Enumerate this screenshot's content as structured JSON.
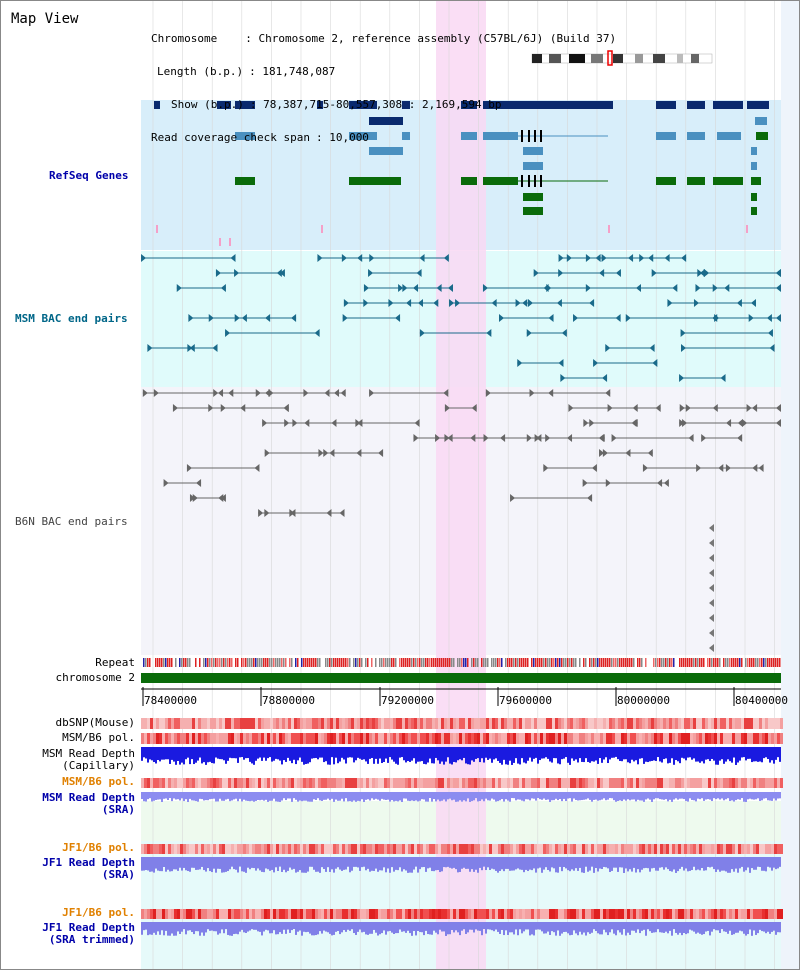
{
  "title": "Map View",
  "info": {
    "chromosome_key": "Chromosome",
    "chromosome_val": ": Chromosome 2, reference assembly (C57BL/6J) (Build 37)",
    "length_key": "Length (b.p.)",
    "length_val": ": 181,748,087",
    "show_key": "Show (b.p.)",
    "show_val": ": 78,387,715-80,557,308 : 2,169,594 bp",
    "coverage_key": "Read coverage check span",
    "coverage_val": ": 10,000"
  },
  "tracks": {
    "refseq": {
      "label": "RefSeq Genes",
      "color": "#0000aa"
    },
    "msm_bac": {
      "label": "MSM BAC end pairs",
      "color": "#006688"
    },
    "b6n_bac": {
      "label": "B6N BAC end pairs",
      "color": "#444444"
    },
    "repeat": {
      "label": "Repeat"
    },
    "chrom": {
      "label": "chromosome 2"
    }
  },
  "axis": {
    "ticks": [
      "78400000",
      "78800000",
      "79200000",
      "79600000",
      "80000000",
      "80400000"
    ]
  },
  "lower_tracks": [
    {
      "key": "dbsnp",
      "lines": [
        "dbSNP(Mouse)"
      ],
      "color": "#000000"
    },
    {
      "key": "msm_b6_pol1",
      "lines": [
        "MSM/B6 pol."
      ],
      "color": "#000000"
    },
    {
      "key": "msm_depth_cap",
      "lines": [
        "MSM Read Depth",
        "(Capillary)"
      ],
      "color": "#000000"
    },
    {
      "key": "msm_b6_pol2",
      "lines": [
        "MSM/B6 pol."
      ],
      "color": "#e08000"
    },
    {
      "key": "msm_depth_sra",
      "lines": [
        "MSM Read Depth",
        "(SRA)"
      ],
      "color": "#0000aa"
    },
    {
      "key": "jf1_b6_pol1",
      "lines": [
        "JF1/B6 pol."
      ],
      "color": "#e08000"
    },
    {
      "key": "jf1_depth_sra",
      "lines": [
        "JF1 Read Depth",
        "(SRA)"
      ],
      "color": "#0000aa"
    },
    {
      "key": "jf1_b6_pol2",
      "lines": [
        "JF1/B6 pol."
      ],
      "color": "#e08000"
    },
    {
      "key": "jf1_depth_trim",
      "lines": [
        "JF1 Read Depth",
        "(SRA trimmed)"
      ],
      "color": "#0000aa"
    }
  ]
}
